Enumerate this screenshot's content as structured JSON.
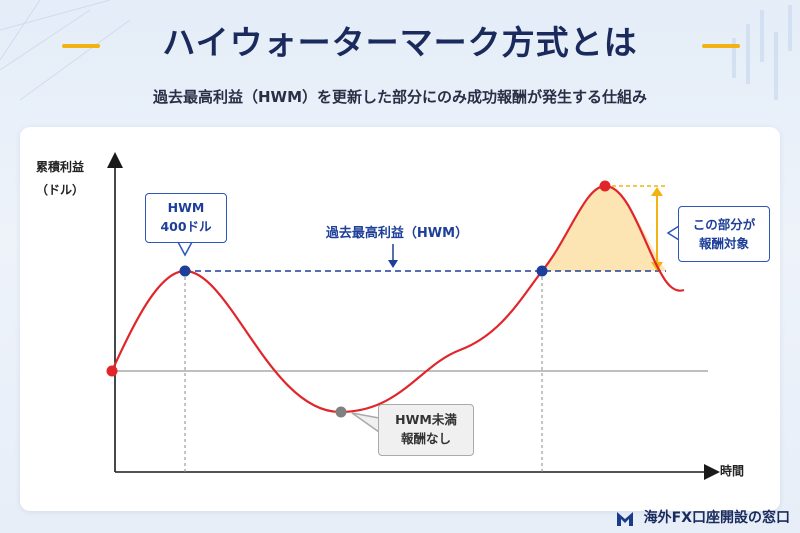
{
  "header": {
    "title": "ハイウォーターマーク方式とは",
    "subtitle": "過去最高利益（HWM）を更新した部分にのみ成功報酬が発生する仕組み"
  },
  "diagram": {
    "y_axis_label_line1": "累積利益",
    "y_axis_label_line2": "（ドル）",
    "x_axis_label": "時間",
    "hwm_line_label": "過去最高利益（HWM）",
    "callout_hwm_line1": "HWM",
    "callout_hwm_line2": "400ドル",
    "callout_below_line1": "HWM未満",
    "callout_below_line2": "報酬なし",
    "callout_target_line1": "この部分が",
    "callout_target_line2": "報酬対象"
  },
  "footer": {
    "brand": "海外FX口座開設の窓口"
  },
  "colors": {
    "title": "#1a2a5c",
    "accent_yellow": "#f2b312",
    "curve_red": "#e0262b",
    "hwm_blue": "#1d3f9a",
    "fee_fill": "#fde5b3",
    "below_gray": "#808080"
  }
}
